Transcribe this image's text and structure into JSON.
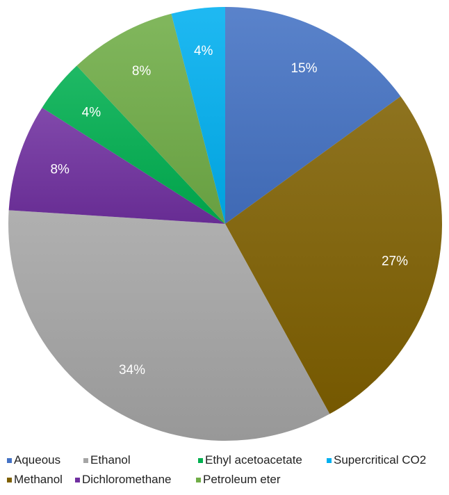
{
  "chart_data": {
    "type": "pie",
    "title": "",
    "slices": [
      {
        "name": "Aqueous",
        "value": 15,
        "label": "15%",
        "color": "#4472C4"
      },
      {
        "name": "Methanol",
        "value": 27,
        "label": "27%",
        "color": "#7F6000"
      },
      {
        "name": "Ethanol",
        "value": 34,
        "label": "34%",
        "color": "#A5A5A5"
      },
      {
        "name": "Dichloromethane",
        "value": 8,
        "label": "8%",
        "color": "#7030A0"
      },
      {
        "name": "Ethyl acetoacetate",
        "value": 4,
        "label": "4%",
        "color": "#00B050"
      },
      {
        "name": "Petroleum eter",
        "value": 8,
        "label": "8%",
        "color": "#70AD47"
      },
      {
        "name": "Supercritical CO2",
        "value": 4,
        "label": "4%",
        "color": "#00B0F0"
      }
    ],
    "start": "12 o'clock",
    "direction": "clockwise",
    "legend_position": "bottom"
  }
}
